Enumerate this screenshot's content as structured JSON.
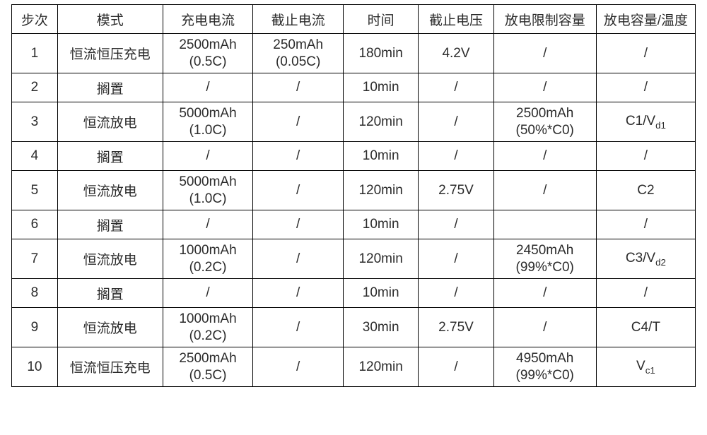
{
  "table": {
    "background_color": "#ffffff",
    "border_color": "#000000",
    "text_color": "#2b2b2b",
    "header_fontsize": 19,
    "cell_fontsize": 19,
    "col_widths_pct": [
      6.7,
      15.4,
      13.2,
      13.2,
      11.0,
      11.0,
      15.0,
      14.5
    ],
    "columns": [
      "步次",
      "模式",
      "充电电流",
      "截止电流",
      "时间",
      "截止电压",
      "放电限制容量",
      "放电容量/温度"
    ],
    "rows": [
      {
        "height": "tall",
        "cells": [
          "1",
          "恒流恒压充电",
          "2500mAh\n(0.5C)",
          "250mAh\n(0.05C)",
          "180min",
          "4.2V",
          "/",
          "/"
        ]
      },
      {
        "height": "short",
        "cells": [
          "2",
          "搁置",
          "/",
          "/",
          "10min",
          "/",
          "/",
          "/"
        ]
      },
      {
        "height": "tall",
        "cells": [
          "3",
          "恒流放电",
          "5000mAh\n(1.0C)",
          "/",
          "120min",
          "/",
          "2500mAh\n(50%*C0)",
          "C1/V_{d1}"
        ]
      },
      {
        "height": "short",
        "cells": [
          "4",
          "搁置",
          "/",
          "/",
          "10min",
          "/",
          "/",
          "/"
        ]
      },
      {
        "height": "tall",
        "cells": [
          "5",
          "恒流放电",
          "5000mAh\n(1.0C)",
          "/",
          "120min",
          "2.75V",
          "/",
          "C2"
        ]
      },
      {
        "height": "short",
        "cells": [
          "6",
          "搁置",
          "/",
          "/",
          "10min",
          "/",
          "",
          "/"
        ]
      },
      {
        "height": "tall",
        "cells": [
          "7",
          "恒流放电",
          "1000mAh\n(0.2C)",
          "/",
          "120min",
          "/",
          "2450mAh\n(99%*C0)",
          "C3/V_{d2}"
        ]
      },
      {
        "height": "short",
        "cells": [
          "8",
          "搁置",
          "/",
          "/",
          "10min",
          "/",
          "/",
          "/"
        ]
      },
      {
        "height": "tall",
        "cells": [
          "9",
          "恒流放电",
          "1000mAh\n(0.2C)",
          "/",
          "30min",
          "2.75V",
          "/",
          "C4/T"
        ]
      },
      {
        "height": "tall",
        "cells": [
          "10",
          "恒流恒压充电",
          "2500mAh\n(0.5C)",
          "/",
          "120min",
          "/",
          "4950mAh\n(99%*C0)",
          "V_{c1}"
        ]
      }
    ]
  }
}
